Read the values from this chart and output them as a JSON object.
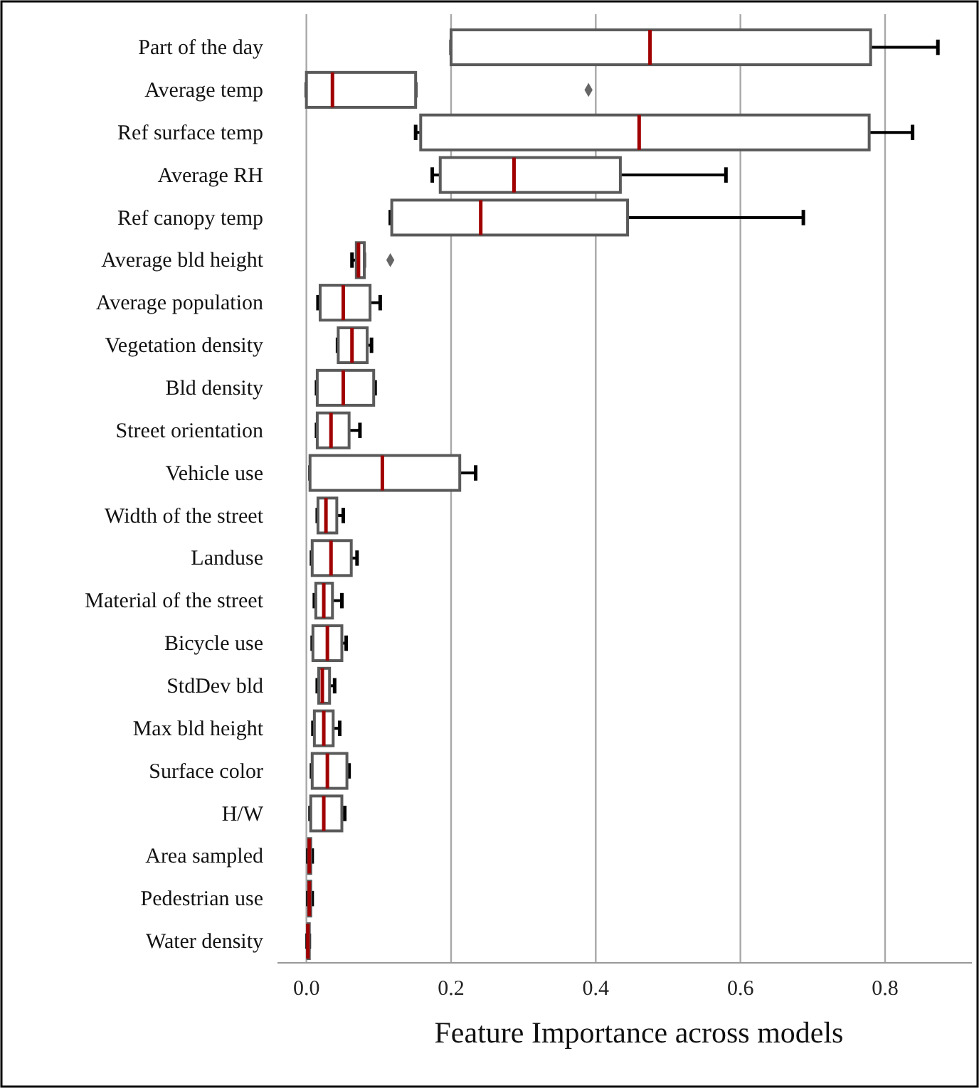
{
  "chart_data": {
    "type": "box",
    "orientation": "horizontal",
    "xlabel": "Feature Importance across models",
    "grid": "x",
    "color": "#ffffff",
    "categories": [
      "Part of the day",
      "Average temp",
      "Ref surface temp",
      "Average RH",
      "Ref canopy temp",
      "Average bld height",
      "Average population",
      "Vegetation density",
      "Bld density",
      "Street orientation",
      "Vehicle use",
      "Width of the street",
      "Landuse",
      "Material of the street",
      "Bicycle use",
      "StdDev bld",
      "Max bld height",
      "Surface color",
      "H/W",
      "Area sampled",
      "Pedestrian use",
      "Water density"
    ],
    "boxes": [
      {
        "low": 0.2,
        "q1": 0.2,
        "median": 0.475,
        "q3": 0.78,
        "high": 0.873
      },
      {
        "low": 0.0,
        "q1": 0.0,
        "median": 0.036,
        "q3": 0.151,
        "high": 0.151,
        "outliers": [
          0.39
        ]
      },
      {
        "low": 0.151,
        "q1": 0.158,
        "median": 0.46,
        "q3": 0.778,
        "high": 0.838
      },
      {
        "low": 0.174,
        "q1": 0.185,
        "median": 0.287,
        "q3": 0.434,
        "high": 0.58
      },
      {
        "low": 0.116,
        "q1": 0.118,
        "median": 0.241,
        "q3": 0.444,
        "high": 0.687
      },
      {
        "low": 0.063,
        "q1": 0.069,
        "median": 0.072,
        "q3": 0.08,
        "high": 0.08,
        "outliers": [
          0.116
        ]
      },
      {
        "low": 0.016,
        "q1": 0.019,
        "median": 0.051,
        "q3": 0.088,
        "high": 0.102
      },
      {
        "low": 0.043,
        "q1": 0.044,
        "median": 0.063,
        "q3": 0.084,
        "high": 0.09
      },
      {
        "low": 0.014,
        "q1": 0.015,
        "median": 0.051,
        "q3": 0.093,
        "high": 0.095
      },
      {
        "low": 0.014,
        "q1": 0.015,
        "median": 0.034,
        "q3": 0.059,
        "high": 0.074
      },
      {
        "low": 0.005,
        "q1": 0.005,
        "median": 0.105,
        "q3": 0.212,
        "high": 0.234
      },
      {
        "low": 0.015,
        "q1": 0.016,
        "median": 0.027,
        "q3": 0.042,
        "high": 0.051
      },
      {
        "low": 0.007,
        "q1": 0.008,
        "median": 0.034,
        "q3": 0.062,
        "high": 0.07
      },
      {
        "low": 0.011,
        "q1": 0.013,
        "median": 0.024,
        "q3": 0.036,
        "high": 0.049
      },
      {
        "low": 0.008,
        "q1": 0.009,
        "median": 0.029,
        "q3": 0.049,
        "high": 0.055
      },
      {
        "low": 0.015,
        "q1": 0.017,
        "median": 0.022,
        "q3": 0.032,
        "high": 0.039
      },
      {
        "low": 0.009,
        "q1": 0.011,
        "median": 0.024,
        "q3": 0.037,
        "high": 0.046
      },
      {
        "low": 0.007,
        "q1": 0.008,
        "median": 0.029,
        "q3": 0.056,
        "high": 0.059
      },
      {
        "low": 0.005,
        "q1": 0.006,
        "median": 0.024,
        "q3": 0.049,
        "high": 0.053
      },
      {
        "low": 0.002,
        "q1": 0.003,
        "median": 0.004,
        "q3": 0.006,
        "high": 0.008
      },
      {
        "low": 0.002,
        "q1": 0.003,
        "median": 0.004,
        "q3": 0.006,
        "high": 0.008
      },
      {
        "low": 0.001,
        "q1": 0.002,
        "median": 0.002,
        "q3": 0.003,
        "high": 0.004
      }
    ],
    "xlim": [
      -0.04,
      0.92
    ],
    "xticks": [
      {
        "value": 0,
        "label": "0.0"
      },
      0.2,
      0.4,
      0.6,
      0.8
    ]
  }
}
